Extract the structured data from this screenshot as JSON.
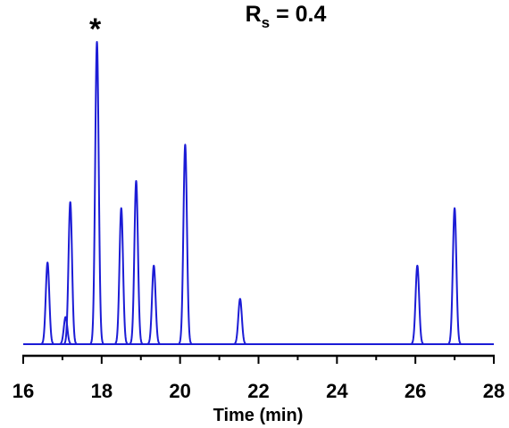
{
  "chart_data": {
    "type": "chromatogram",
    "title": [
      "R",
      "s",
      " = 0.4"
    ],
    "x_label": "Time (min)",
    "annotations": [
      {
        "text": "*",
        "x": 17.88
      }
    ],
    "series": [
      {
        "color": "#1c1cd6",
        "x": [
          16.62,
          17.08,
          17.2,
          17.88,
          18.5,
          18.88,
          19.33,
          20.13,
          21.53,
          26.05,
          27.0
        ],
        "values": [
          27,
          9,
          47,
          100,
          45,
          54,
          26,
          66,
          15,
          26,
          45
        ]
      }
    ],
    "xlim": [
      16,
      28
    ],
    "xticks": [
      16,
      18,
      20,
      22,
      24,
      26,
      28
    ],
    "xminorticks": [
      17,
      19,
      21,
      23,
      25,
      27
    ],
    "ylim": [
      0,
      100
    ]
  }
}
